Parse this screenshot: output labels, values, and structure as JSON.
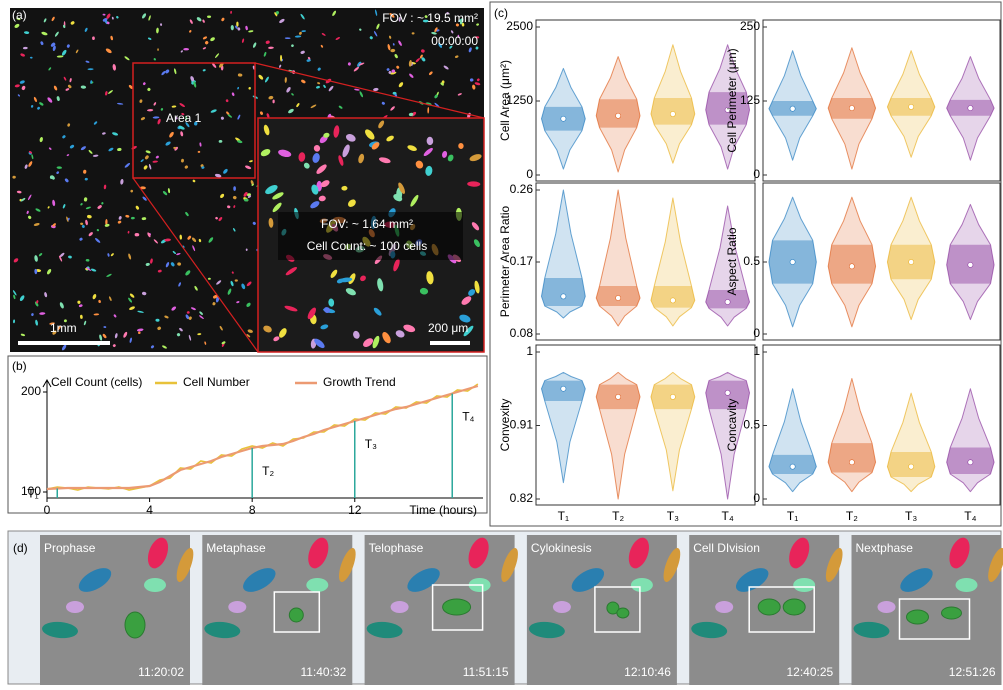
{
  "panel_a": {
    "label": "(a)",
    "fov": "FOV : ~ 19.5 mm²",
    "time": "00:00:00",
    "area_label": "Area 1",
    "inset_fov": "FOV: ~ 1.64 mm²",
    "inset_count": "Cell Count: ~ 100 cells",
    "scale_bar": "1mm",
    "inset_scale_bar": "200 μm"
  },
  "panel_b_label": "(b)",
  "panel_c_label": "(c)",
  "chart_data": [
    {
      "type": "line",
      "ylabel": "Cell Count (cells)",
      "xlabel": "Time (hours)",
      "x": [
        0,
        0.4,
        0.8,
        1.2,
        1.6,
        2,
        2.4,
        2.8,
        3.2,
        3.6,
        4,
        4.4,
        4.8,
        5.2,
        5.6,
        6,
        6.4,
        6.8,
        7.2,
        7.6,
        8,
        8.4,
        8.8,
        9.2,
        9.6,
        10,
        10.4,
        10.8,
        11.2,
        11.6,
        12,
        12.4,
        12.8,
        13.2,
        13.6,
        14,
        14.4,
        14.8,
        15.2,
        15.6,
        16,
        16.4,
        16.8
      ],
      "series": [
        {
          "name": "Cell Number",
          "color": "#e8c23a",
          "values": [
            103,
            105,
            104,
            102,
            105,
            104,
            103,
            105,
            102,
            104,
            106,
            112,
            114,
            124,
            123,
            131,
            129,
            137,
            136,
            143,
            146,
            144,
            149,
            146,
            153,
            154,
            160,
            160,
            167,
            166,
            173,
            172,
            179,
            178,
            185,
            184,
            190,
            189,
            196,
            195,
            202,
            201,
            208
          ]
        },
        {
          "name": "Growth Trend",
          "color": "#ec9a72",
          "values": [
            103,
            103.5,
            104,
            104,
            104,
            104,
            104,
            104,
            104,
            105,
            106,
            110,
            116,
            122,
            125,
            128,
            131,
            135,
            138,
            141,
            144,
            146,
            147,
            148,
            151,
            155,
            158,
            162,
            165,
            168,
            171,
            174,
            177,
            180,
            183,
            185,
            188,
            191,
            194,
            197,
            200,
            203,
            206
          ]
        }
      ],
      "markers": [
        {
          "label": "T₁",
          "x": 0.4
        },
        {
          "label": "T₂",
          "x": 8
        },
        {
          "label": "T₃",
          "x": 12
        },
        {
          "label": "T₄",
          "x": 15.8
        }
      ],
      "marker_color": "#2aa79b",
      "xlim": [
        0,
        17
      ],
      "xticks": [
        0,
        4,
        8,
        12
      ],
      "ylim": [
        94,
        212
      ],
      "yticks": [
        100,
        200
      ]
    },
    {
      "type": "violin",
      "ylabel": "Cell Area (μm²)",
      "ylim": [
        0,
        2500
      ],
      "yticks": [
        0,
        1250,
        2500
      ],
      "colors": [
        "#2a7fc1",
        "#e0662a",
        "#eab22a",
        "#8e3fa0"
      ],
      "stats": [
        {
          "min": 100,
          "q1": 750,
          "median": 950,
          "q3": 1150,
          "max": 1800
        },
        {
          "min": 50,
          "q1": 800,
          "median": 1000,
          "q3": 1280,
          "max": 2000
        },
        {
          "min": 200,
          "q1": 850,
          "median": 1030,
          "q3": 1300,
          "max": 2200
        },
        {
          "min": 100,
          "q1": 850,
          "median": 1100,
          "q3": 1400,
          "max": 2200
        }
      ]
    },
    {
      "type": "violin",
      "ylabel": "Cell Perimeter (μm)",
      "ylim": [
        0,
        250
      ],
      "yticks": [
        0,
        125,
        250
      ],
      "colors": [
        "#2a7fc1",
        "#e0662a",
        "#eab22a",
        "#8e3fa0"
      ],
      "stats": [
        {
          "min": 25,
          "q1": 100,
          "median": 112,
          "q3": 125,
          "max": 210
        },
        {
          "min": 10,
          "q1": 95,
          "median": 113,
          "q3": 130,
          "max": 215
        },
        {
          "min": 30,
          "q1": 100,
          "median": 115,
          "q3": 130,
          "max": 210
        },
        {
          "min": 25,
          "q1": 100,
          "median": 113,
          "q3": 127,
          "max": 200
        }
      ]
    },
    {
      "type": "violin",
      "ylabel": "Perimeter Area Ratio",
      "ylim": [
        0.08,
        0.26
      ],
      "yticks": [
        0.08,
        0.17,
        0.26
      ],
      "colors": [
        "#2a7fc1",
        "#e0662a",
        "#eab22a",
        "#8e3fa0"
      ],
      "stats": [
        {
          "min": 0.1,
          "q1": 0.115,
          "median": 0.127,
          "q3": 0.15,
          "max": 0.26
        },
        {
          "min": 0.09,
          "q1": 0.115,
          "median": 0.125,
          "q3": 0.14,
          "max": 0.26
        },
        {
          "min": 0.09,
          "q1": 0.113,
          "median": 0.122,
          "q3": 0.14,
          "max": 0.25
        },
        {
          "min": 0.09,
          "q1": 0.112,
          "median": 0.12,
          "q3": 0.135,
          "max": 0.24
        }
      ]
    },
    {
      "type": "violin",
      "ylabel": "Aspect Ratio",
      "ylim": [
        0,
        1
      ],
      "yticks": [
        0,
        0.5
      ],
      "colors": [
        "#2a7fc1",
        "#e0662a",
        "#eab22a",
        "#8e3fa0"
      ],
      "stats": [
        {
          "min": 0.05,
          "q1": 0.35,
          "median": 0.5,
          "q3": 0.65,
          "max": 0.95
        },
        {
          "min": 0.05,
          "q1": 0.35,
          "median": 0.47,
          "q3": 0.62,
          "max": 0.95
        },
        {
          "min": 0.1,
          "q1": 0.38,
          "median": 0.5,
          "q3": 0.62,
          "max": 0.95
        },
        {
          "min": 0.1,
          "q1": 0.35,
          "median": 0.48,
          "q3": 0.62,
          "max": 0.9
        }
      ]
    },
    {
      "type": "violin",
      "ylabel": "Convexity",
      "ylim": [
        0.82,
        1
      ],
      "yticks": [
        0.82,
        0.91,
        1
      ],
      "colors": [
        "#2a7fc1",
        "#e0662a",
        "#eab22a",
        "#8e3fa0"
      ],
      "categories": [
        "T₁",
        "T₂",
        "T₃",
        "T₄"
      ],
      "stats": [
        {
          "min": 0.84,
          "q1": 0.94,
          "median": 0.955,
          "q3": 0.965,
          "max": 0.975
        },
        {
          "min": 0.82,
          "q1": 0.93,
          "median": 0.945,
          "q3": 0.96,
          "max": 0.975
        },
        {
          "min": 0.83,
          "q1": 0.93,
          "median": 0.945,
          "q3": 0.96,
          "max": 0.975
        },
        {
          "min": 0.82,
          "q1": 0.93,
          "median": 0.95,
          "q3": 0.965,
          "max": 0.975
        }
      ]
    },
    {
      "type": "violin",
      "ylabel": "Concavity",
      "ylim": [
        0,
        1
      ],
      "yticks": [
        0,
        0.5,
        1
      ],
      "colors": [
        "#2a7fc1",
        "#e0662a",
        "#eab22a",
        "#8e3fa0"
      ],
      "categories": [
        "T₁",
        "T₂",
        "T₃",
        "T₄"
      ],
      "stats": [
        {
          "min": 0.05,
          "q1": 0.17,
          "median": 0.22,
          "q3": 0.3,
          "max": 0.75
        },
        {
          "min": 0.05,
          "q1": 0.18,
          "median": 0.25,
          "q3": 0.38,
          "max": 0.82
        },
        {
          "min": 0.05,
          "q1": 0.15,
          "median": 0.22,
          "q3": 0.32,
          "max": 0.72
        },
        {
          "min": 0.05,
          "q1": 0.17,
          "median": 0.25,
          "q3": 0.35,
          "max": 0.75
        }
      ]
    }
  ],
  "panel_d": {
    "label": "(d)",
    "frames": [
      {
        "phase": "Prophase",
        "time": "11:20:02"
      },
      {
        "phase": "Metaphase",
        "time": "11:40:32"
      },
      {
        "phase": "Telophase",
        "time": "11:51:15"
      },
      {
        "phase": "Cylokinesis",
        "time": "12:10:46"
      },
      {
        "phase": "Cell DIvision",
        "time": "12:40:25"
      },
      {
        "phase": "Nextphase",
        "time": "12:51:26"
      }
    ]
  }
}
